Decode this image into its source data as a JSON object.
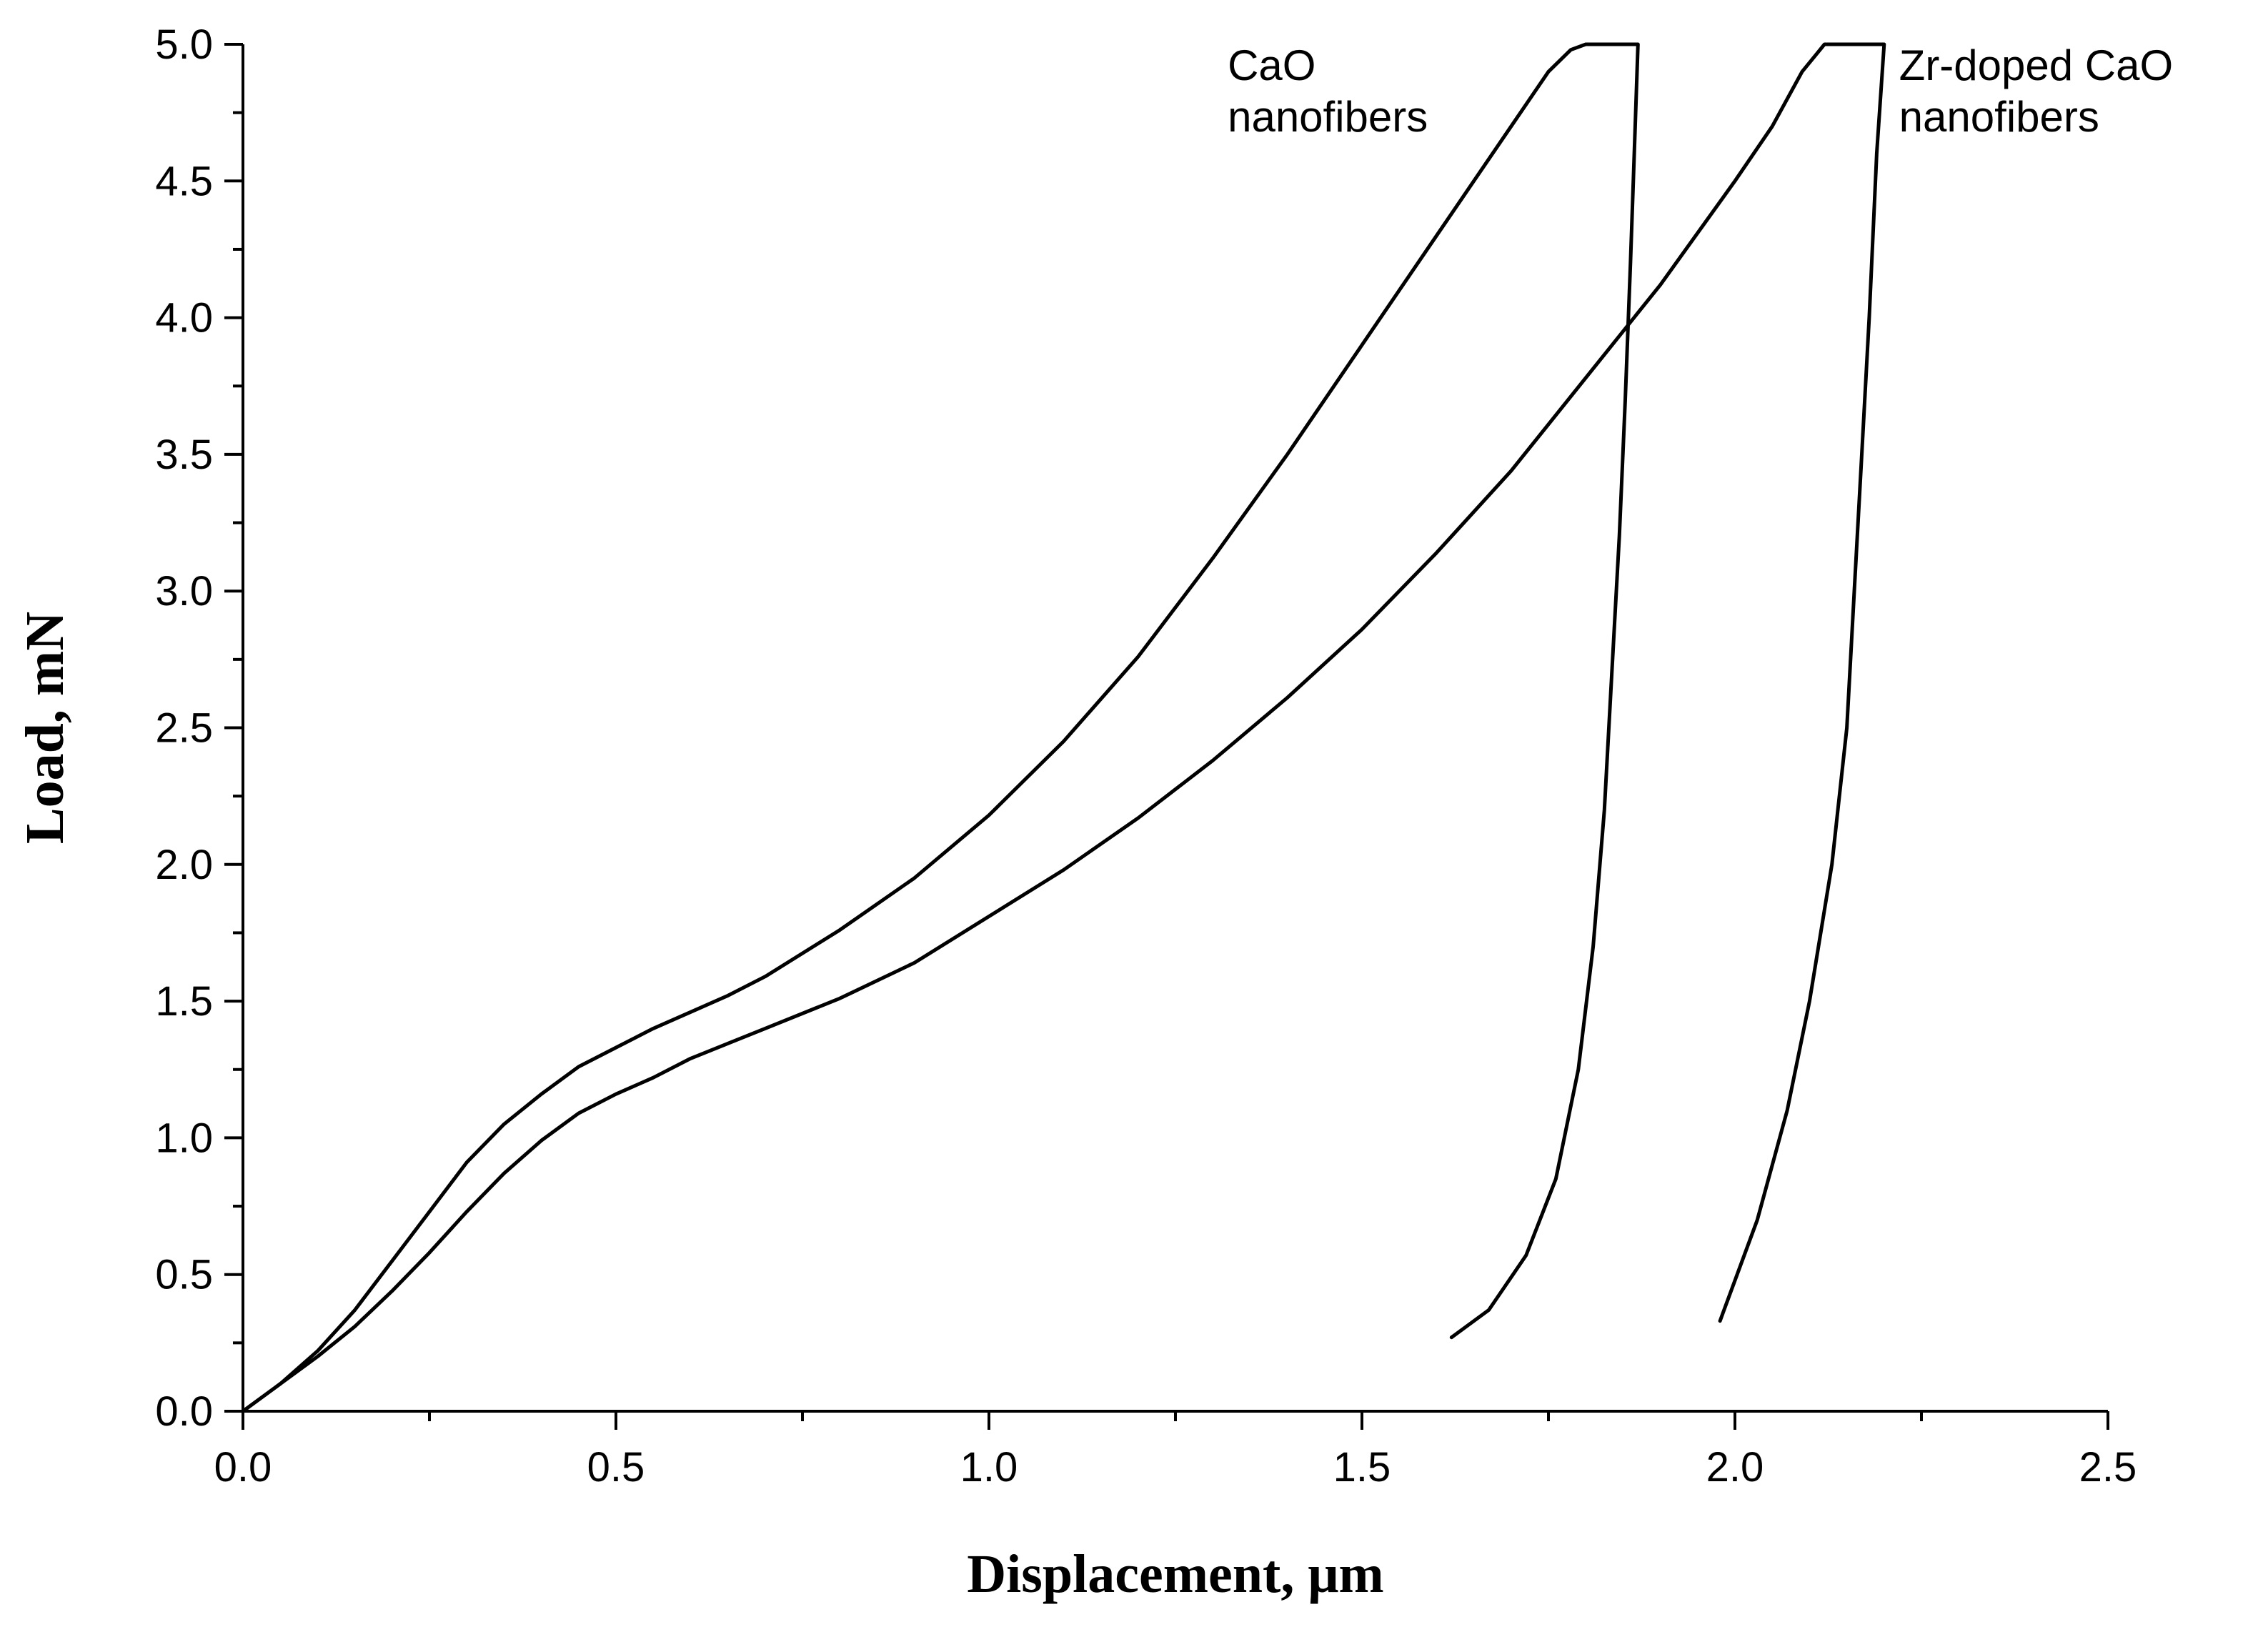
{
  "chart_data": {
    "type": "line",
    "xlabel": "Displacement, μm",
    "ylabel": "Load, mN",
    "xlim": [
      0,
      2.5
    ],
    "ylim": [
      0,
      5.0
    ],
    "x_ticks": [
      "0.0",
      "0.5",
      "1.0",
      "1.5",
      "2.0",
      "2.5"
    ],
    "x_tick_values": [
      0,
      0.5,
      1.0,
      1.5,
      2.0,
      2.5
    ],
    "y_ticks": [
      "0.0",
      "0.5",
      "1.0",
      "1.5",
      "2.0",
      "2.5",
      "3.0",
      "3.5",
      "4.0",
      "4.5",
      "5.0"
    ],
    "y_tick_values": [
      0,
      0.5,
      1.0,
      1.5,
      2.0,
      2.5,
      3.0,
      3.5,
      4.0,
      4.5,
      5.0
    ],
    "minor_ticks": true,
    "grid": false,
    "legend": "none",
    "annotations": [
      {
        "lines": [
          "CaO",
          "nanofibers"
        ],
        "x": 1.32,
        "y": 5.0
      },
      {
        "lines": [
          "Zr-doped CaO",
          "nanofibers"
        ],
        "x": 2.22,
        "y": 5.0
      }
    ],
    "series": [
      {
        "points": [
          [
            0,
            0
          ],
          [
            0.05,
            0.1
          ],
          [
            0.1,
            0.22
          ],
          [
            0.15,
            0.37
          ],
          [
            0.2,
            0.55
          ],
          [
            0.25,
            0.73
          ],
          [
            0.3,
            0.91
          ],
          [
            0.35,
            1.05
          ],
          [
            0.4,
            1.16
          ],
          [
            0.45,
            1.26
          ],
          [
            0.5,
            1.33
          ],
          [
            0.55,
            1.4
          ],
          [
            0.6,
            1.46
          ],
          [
            0.65,
            1.52
          ],
          [
            0.7,
            1.59
          ],
          [
            0.8,
            1.76
          ],
          [
            0.9,
            1.95
          ],
          [
            1.0,
            2.18
          ],
          [
            1.1,
            2.45
          ],
          [
            1.2,
            2.76
          ],
          [
            1.3,
            3.12
          ],
          [
            1.4,
            3.5
          ],
          [
            1.5,
            3.9
          ],
          [
            1.6,
            4.3
          ],
          [
            1.7,
            4.7
          ],
          [
            1.75,
            4.9
          ],
          [
            1.78,
            4.98
          ],
          [
            1.8,
            5.0
          ],
          [
            1.87,
            5.0
          ],
          [
            1.865,
            4.6
          ],
          [
            1.86,
            4.2
          ],
          [
            1.853,
            3.7
          ],
          [
            1.845,
            3.2
          ],
          [
            1.835,
            2.7
          ],
          [
            1.825,
            2.2
          ],
          [
            1.81,
            1.7
          ],
          [
            1.79,
            1.25
          ],
          [
            1.76,
            0.85
          ],
          [
            1.72,
            0.57
          ],
          [
            1.67,
            0.37
          ],
          [
            1.62,
            0.27
          ]
        ]
      },
      {
        "points": [
          [
            0,
            0
          ],
          [
            0.05,
            0.1
          ],
          [
            0.1,
            0.2
          ],
          [
            0.15,
            0.31
          ],
          [
            0.2,
            0.44
          ],
          [
            0.25,
            0.58
          ],
          [
            0.3,
            0.73
          ],
          [
            0.35,
            0.87
          ],
          [
            0.4,
            0.99
          ],
          [
            0.45,
            1.09
          ],
          [
            0.5,
            1.16
          ],
          [
            0.55,
            1.22
          ],
          [
            0.6,
            1.29
          ],
          [
            0.7,
            1.4
          ],
          [
            0.8,
            1.51
          ],
          [
            0.9,
            1.64
          ],
          [
            1.0,
            1.81
          ],
          [
            1.1,
            1.98
          ],
          [
            1.2,
            2.17
          ],
          [
            1.3,
            2.38
          ],
          [
            1.4,
            2.61
          ],
          [
            1.5,
            2.86
          ],
          [
            1.6,
            3.14
          ],
          [
            1.7,
            3.44
          ],
          [
            1.8,
            3.78
          ],
          [
            1.9,
            4.12
          ],
          [
            2.0,
            4.5
          ],
          [
            2.05,
            4.7
          ],
          [
            2.09,
            4.9
          ],
          [
            2.12,
            5.0
          ],
          [
            2.2,
            5.0
          ],
          [
            2.19,
            4.6
          ],
          [
            2.18,
            4.0
          ],
          [
            2.17,
            3.5
          ],
          [
            2.16,
            3.0
          ],
          [
            2.15,
            2.5
          ],
          [
            2.13,
            2.0
          ],
          [
            2.1,
            1.5
          ],
          [
            2.07,
            1.1
          ],
          [
            2.03,
            0.7
          ],
          [
            1.98,
            0.33
          ]
        ]
      }
    ]
  }
}
